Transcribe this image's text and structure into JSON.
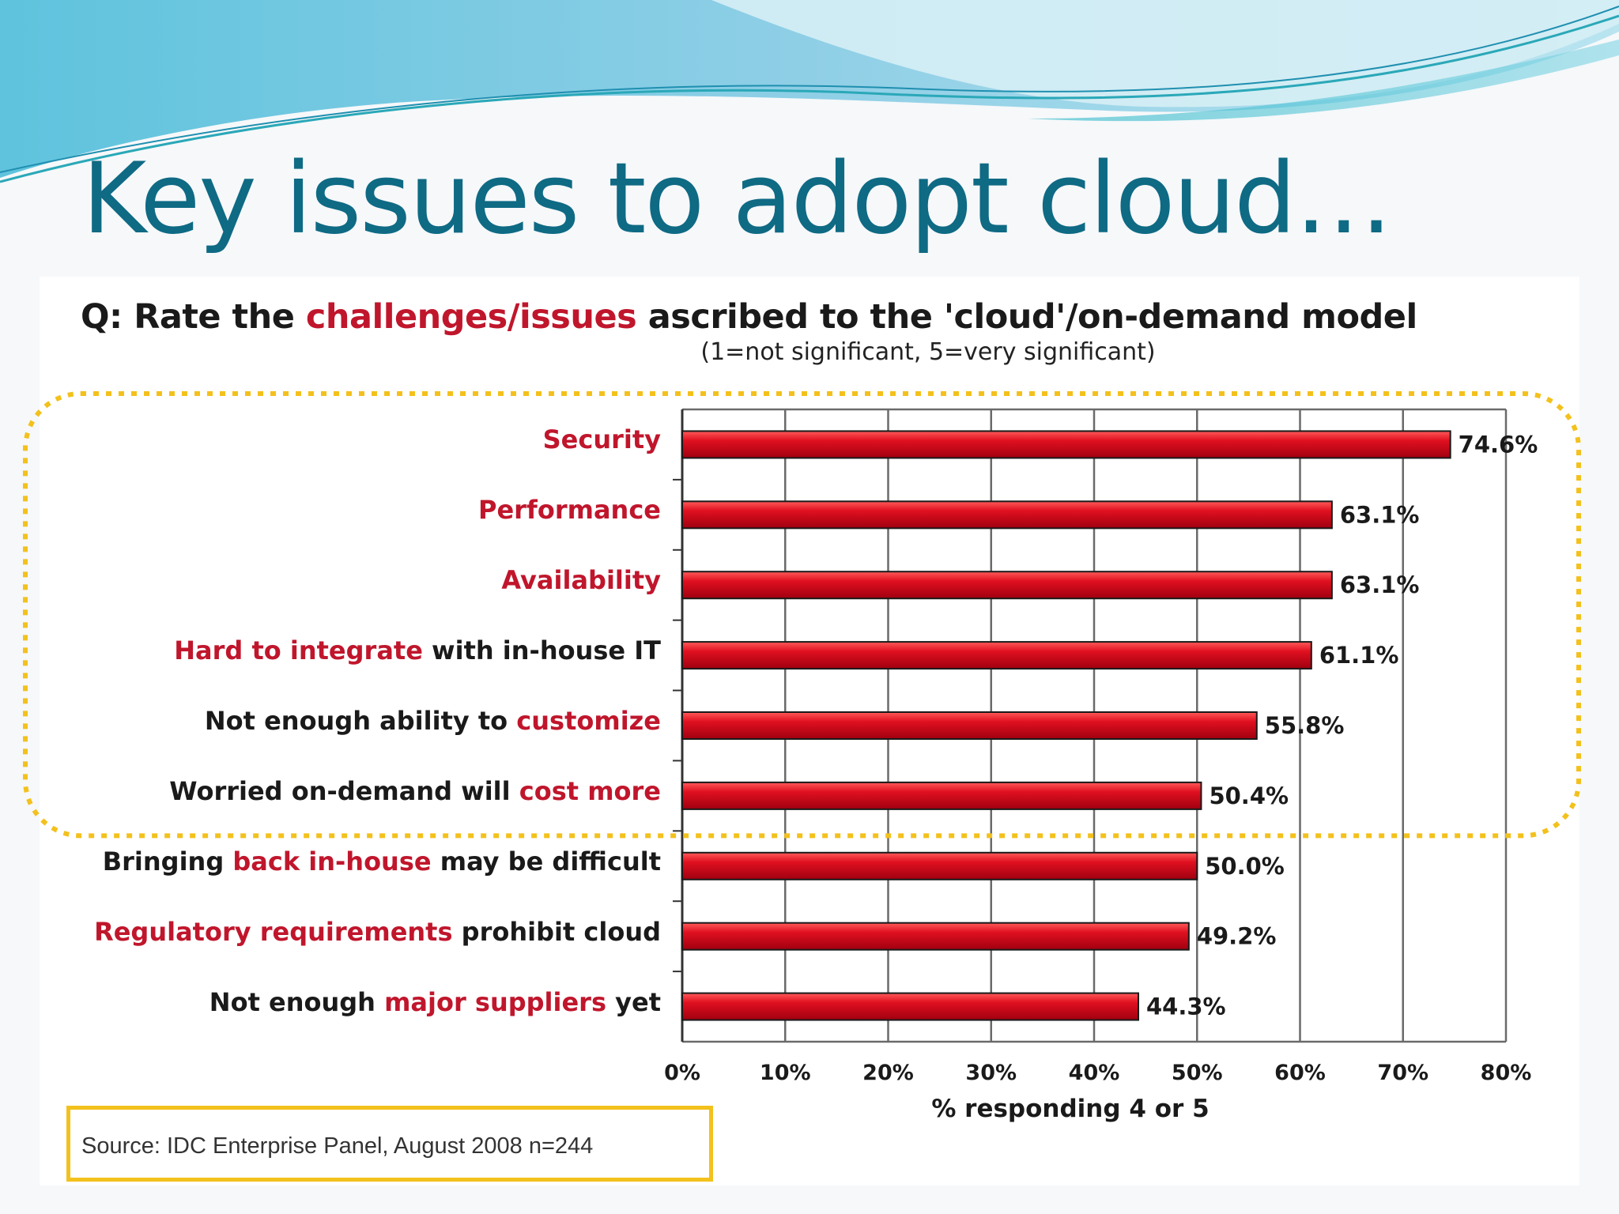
{
  "slide": {
    "title": "Key issues to adopt cloud…",
    "question_parts": [
      {
        "text": "Q: Rate the ",
        "highlight": false
      },
      {
        "text": "challenges/issues",
        "highlight": true
      },
      {
        "text": " ascribed to the 'cloud'/on-demand model",
        "highlight": false
      }
    ],
    "scale_note": "(1=not significant, 5=very significant)",
    "source": "Source: IDC Enterprise Panel, August 2008  n=244"
  },
  "colors": {
    "title": "#0f6a84",
    "highlight": "#c0162c",
    "bar": "#e01020",
    "dotted_outline": "#f3c11c"
  },
  "chart_data": {
    "type": "bar",
    "orientation": "horizontal",
    "categories": [
      "Security",
      "Performance",
      "Availability",
      "Hard to integrate with in-house IT",
      "Not enough ability to customize",
      "Worried on-demand will cost more",
      "Bringing back in-house may be difficult",
      "Regulatory requirements prohibit cloud",
      "Not enough major suppliers yet"
    ],
    "category_label_parts": [
      [
        {
          "text": "Security",
          "highlight": true
        }
      ],
      [
        {
          "text": "Performance",
          "highlight": true
        }
      ],
      [
        {
          "text": "Availability",
          "highlight": true
        }
      ],
      [
        {
          "text": "Hard to integrate",
          "highlight": true
        },
        {
          "text": " with in-house IT",
          "highlight": false
        }
      ],
      [
        {
          "text": "Not enough ability to ",
          "highlight": false
        },
        {
          "text": "customize",
          "highlight": true
        }
      ],
      [
        {
          "text": "Worried on-demand will ",
          "highlight": false
        },
        {
          "text": "cost more",
          "highlight": true
        }
      ],
      [
        {
          "text": "Bringing ",
          "highlight": false
        },
        {
          "text": "back in-house",
          "highlight": true
        },
        {
          "text": " may be difficult",
          "highlight": false
        }
      ],
      [
        {
          "text": "Regulatory requirements",
          "highlight": true
        },
        {
          "text": " prohibit cloud",
          "highlight": false
        }
      ],
      [
        {
          "text": "Not enough ",
          "highlight": false
        },
        {
          "text": "major suppliers",
          "highlight": true
        },
        {
          "text": " yet",
          "highlight": false
        }
      ]
    ],
    "values": [
      74.6,
      63.1,
      63.1,
      61.1,
      55.8,
      50.4,
      50.0,
      49.2,
      44.3
    ],
    "data_labels": [
      "74.6%",
      "63.1%",
      "63.1%",
      "61.1%",
      "55.8%",
      "50.4%",
      "50.0%",
      "49.2%",
      "44.3%"
    ],
    "xlabel": "% responding 4 or 5",
    "ylabel": "",
    "xlim": [
      0,
      80
    ],
    "xticks": [
      0,
      10,
      20,
      30,
      40,
      50,
      60,
      70,
      80
    ],
    "xtick_labels": [
      "0%",
      "10%",
      "20%",
      "30%",
      "40%",
      "50%",
      "60%",
      "70%",
      "80%"
    ],
    "grid": "vertical",
    "legend": "none",
    "highlighted_group": "top six categories enclosed by dotted outline"
  }
}
